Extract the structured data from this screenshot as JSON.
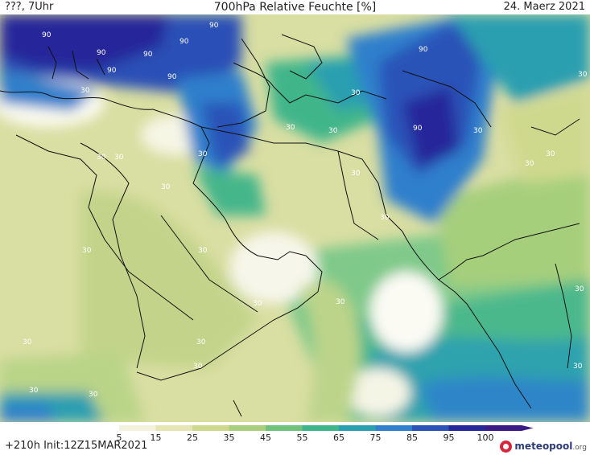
{
  "header": {
    "left": "???, 7Uhr",
    "title": "700hPa Relative Feuchte [%]",
    "date": "24. Maerz 2021"
  },
  "footer": {
    "init": "+210h  Init:12Z15MAR2021",
    "logo_text": "meteopool",
    "logo_tld": ".org"
  },
  "legend": {
    "labels": [
      "5",
      "15",
      "25",
      "35",
      "45",
      "55",
      "65",
      "75",
      "85",
      "95",
      "100"
    ],
    "colors": [
      "#ffffff",
      "#f4f2dc",
      "#e6e6b4",
      "#cfd98e",
      "#a9cf7c",
      "#6fc27c",
      "#3fb58a",
      "#2a9fb0",
      "#2f7fcc",
      "#2c52b8",
      "#25279a",
      "#3b1a86"
    ]
  },
  "map": {
    "contour_labels": [
      "90",
      "90",
      "90",
      "90",
      "90",
      "90",
      "90",
      "90",
      "90",
      "30",
      "30",
      "30",
      "30",
      "30",
      "30",
      "30",
      "30",
      "30",
      "30",
      "30",
      "30",
      "30",
      "30",
      "30",
      "30",
      "30",
      "30",
      "30",
      "30",
      "30",
      "30",
      "30",
      "30",
      "30"
    ]
  }
}
